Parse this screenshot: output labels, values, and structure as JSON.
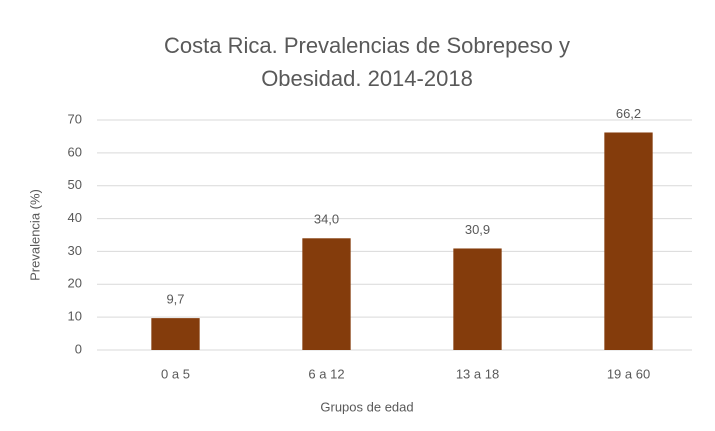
{
  "chart_data": {
    "type": "bar",
    "title": [
      "Costa Rica. Prevalencias de Sobrepeso y",
      "Obesidad. 2014-2018"
    ],
    "x_label": "Grupos de edad",
    "y_label": "Prevalencia (%)",
    "categories": [
      "0 a 5",
      "6 a 12",
      "13 a 18",
      "19 a 60"
    ],
    "values": [
      9.7,
      34.0,
      30.9,
      66.2
    ],
    "value_labels": [
      "9,7",
      "34,0",
      "30,9",
      "66,2"
    ],
    "color": "#843c0c",
    "ylim": [
      0,
      70
    ],
    "yticks": [
      0,
      10,
      20,
      30,
      40,
      50,
      60,
      70
    ],
    "grid": true
  }
}
